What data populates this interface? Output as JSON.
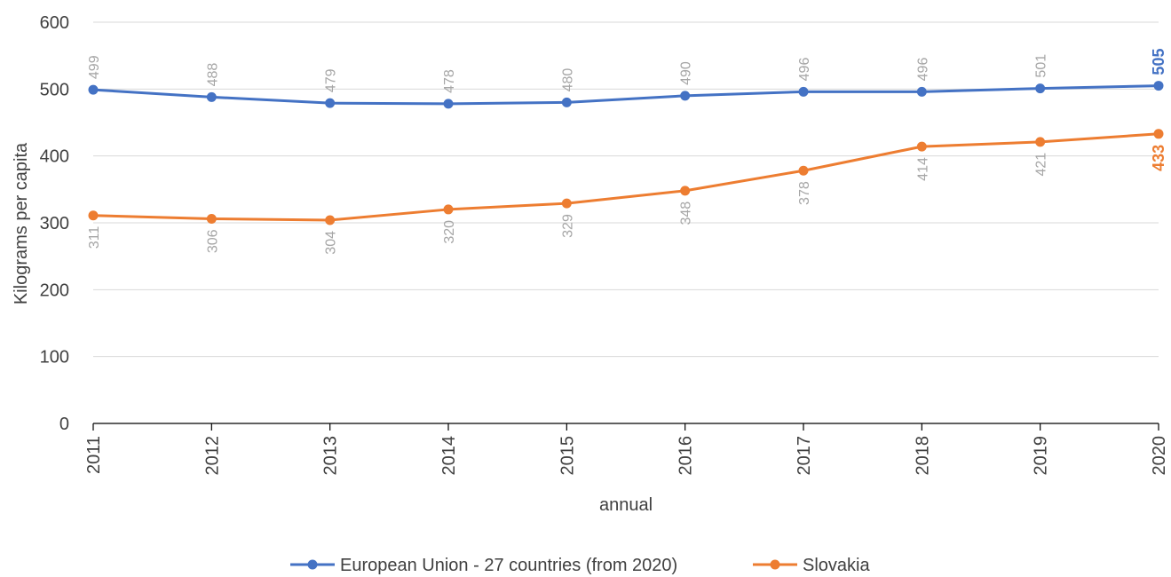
{
  "chart_data": {
    "type": "line",
    "title": "",
    "xlabel": "annual",
    "ylabel": "Kilograms per capita",
    "ylim": [
      0,
      600
    ],
    "yticks": [
      0,
      100,
      200,
      300,
      400,
      500,
      600
    ],
    "grid": true,
    "legend_position": "bottom",
    "categories": [
      "2011",
      "2012",
      "2013",
      "2014",
      "2015",
      "2016",
      "2017",
      "2018",
      "2019",
      "2020"
    ],
    "series": [
      {
        "name": "European Union - 27 countries (from 2020)",
        "color": "#4472c4",
        "values": [
          499,
          488,
          479,
          478,
          480,
          490,
          496,
          496,
          501,
          505
        ],
        "label_placement": "above"
      },
      {
        "name": "Slovakia",
        "color": "#ed7d31",
        "values": [
          311,
          306,
          304,
          320,
          329,
          348,
          378,
          414,
          421,
          433
        ],
        "label_placement": "below"
      }
    ]
  }
}
